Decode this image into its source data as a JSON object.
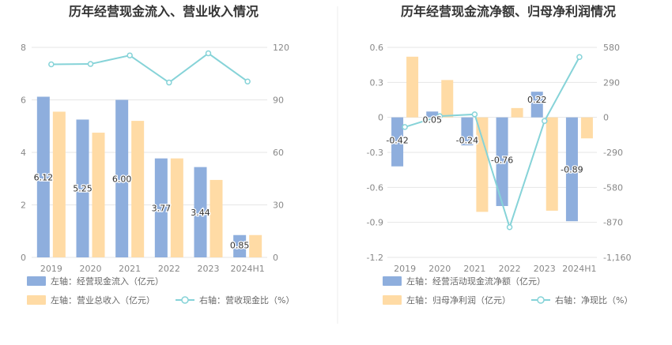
{
  "colors": {
    "bar_primary": "#8eaedd",
    "bar_secondary": "#ffdba5",
    "line": "#86d3d8",
    "grid": "#e6e6e6",
    "axis_text": "#888888",
    "title_text": "#333333",
    "divider": "#eeeeee"
  },
  "chart_data": [
    {
      "type": "bar",
      "title": "历年经营现金流入、营业收入情况",
      "categories": [
        "2019",
        "2020",
        "2021",
        "2022",
        "2023",
        "2024H1"
      ],
      "left_axis": {
        "ticks": [
          "0",
          "2",
          "4",
          "6",
          "8"
        ],
        "min": 0,
        "max": 8
      },
      "right_axis": {
        "ticks": [
          "0",
          "30",
          "60",
          "90",
          "120"
        ],
        "min": 0,
        "max": 120
      },
      "series": [
        {
          "name": "左轴：经营现金流入（亿元）",
          "kind": "bar",
          "axis": "left",
          "color": "#8eaedd",
          "values": [
            6.12,
            5.25,
            6.0,
            3.77,
            3.44,
            0.85
          ],
          "labels": [
            "6.12",
            "5.25",
            "6.00",
            "3.77",
            "3.44",
            "0.85"
          ]
        },
        {
          "name": "左轴：营业总收入（亿元）",
          "kind": "bar",
          "axis": "left",
          "color": "#ffdba5",
          "values": [
            5.55,
            4.75,
            5.2,
            3.77,
            2.95,
            0.85
          ]
        },
        {
          "name": "右轴：营收现金比（%）",
          "kind": "line",
          "axis": "right",
          "color": "#86d3d8",
          "values": [
            110.3,
            110.5,
            115.4,
            99.9,
            116.6,
            100.5
          ]
        }
      ],
      "grid": true,
      "legend": "bottom-left"
    },
    {
      "type": "bar",
      "title": "历年经营现金流净额、归母净利润情况",
      "categories": [
        "2019",
        "2020",
        "2021",
        "2022",
        "2023",
        "2024H1"
      ],
      "left_axis": {
        "ticks": [
          "-1.2",
          "-0.9",
          "-0.6",
          "-0.3",
          "0",
          "0.3",
          "0.6"
        ],
        "min": -1.2,
        "max": 0.6
      },
      "right_axis": {
        "ticks": [
          "-1,160",
          "-870",
          "-580",
          "-290",
          "0",
          "290",
          "580"
        ],
        "min": -1160,
        "max": 580
      },
      "series": [
        {
          "name": "左轴：经营活动现金流净额（亿元）",
          "kind": "bar",
          "axis": "left",
          "color": "#8eaedd",
          "values": [
            -0.42,
            0.05,
            -0.24,
            -0.76,
            0.22,
            -0.89
          ],
          "labels": [
            "-0.42",
            "0.05",
            "-0.24",
            "-0.76",
            "0.22",
            "-0.89"
          ]
        },
        {
          "name": "左轴：归母净利润（亿元）",
          "kind": "bar",
          "axis": "left",
          "color": "#ffdba5",
          "values": [
            0.52,
            0.32,
            -0.81,
            0.08,
            -0.8,
            -0.18
          ]
        },
        {
          "name": "右轴：净现比（%）",
          "kind": "line",
          "axis": "right",
          "color": "#86d3d8",
          "values": [
            -80,
            10,
            25,
            -910,
            -30,
            500
          ]
        }
      ],
      "grid": true,
      "legend": "bottom-left"
    }
  ]
}
